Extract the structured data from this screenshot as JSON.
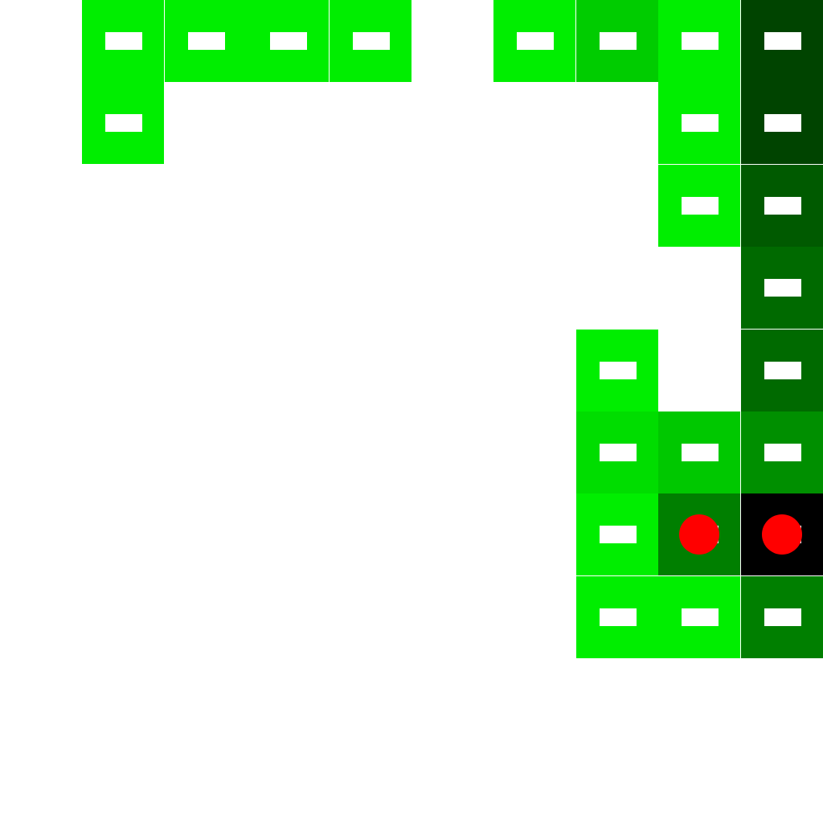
{
  "board": {
    "cols": 10,
    "rows": 10,
    "background": "#ffffff",
    "marker_color": "#ff0000",
    "cells": [
      {
        "col": 1,
        "row": 0,
        "color": "#00ee00"
      },
      {
        "col": 2,
        "row": 0,
        "color": "#00ee00"
      },
      {
        "col": 3,
        "row": 0,
        "color": "#00ee00"
      },
      {
        "col": 4,
        "row": 0,
        "color": "#00ee00"
      },
      {
        "col": 6,
        "row": 0,
        "color": "#00ee00"
      },
      {
        "col": 7,
        "row": 0,
        "color": "#00cc00"
      },
      {
        "col": 8,
        "row": 0,
        "color": "#00ee00"
      },
      {
        "col": 9,
        "row": 0,
        "color": "#004400"
      },
      {
        "col": 1,
        "row": 1,
        "color": "#00ee00"
      },
      {
        "col": 8,
        "row": 1,
        "color": "#00ee00"
      },
      {
        "col": 9,
        "row": 1,
        "color": "#004400"
      },
      {
        "col": 8,
        "row": 2,
        "color": "#00ee00"
      },
      {
        "col": 9,
        "row": 2,
        "color": "#005a00"
      },
      {
        "col": 9,
        "row": 3,
        "color": "#006a00"
      },
      {
        "col": 7,
        "row": 4,
        "color": "#00ee00"
      },
      {
        "col": 9,
        "row": 4,
        "color": "#006a00"
      },
      {
        "col": 7,
        "row": 5,
        "color": "#00dd00"
      },
      {
        "col": 8,
        "row": 5,
        "color": "#00c800"
      },
      {
        "col": 9,
        "row": 5,
        "color": "#008f00"
      },
      {
        "col": 7,
        "row": 6,
        "color": "#00ee00"
      },
      {
        "col": 8,
        "row": 6,
        "color": "#007f00",
        "marker": true
      },
      {
        "col": 9,
        "row": 6,
        "color": "#000000",
        "marker": true
      },
      {
        "col": 7,
        "row": 7,
        "color": "#00ee00"
      },
      {
        "col": 8,
        "row": 7,
        "color": "#00ee00"
      },
      {
        "col": 9,
        "row": 7,
        "color": "#007f00"
      }
    ]
  }
}
